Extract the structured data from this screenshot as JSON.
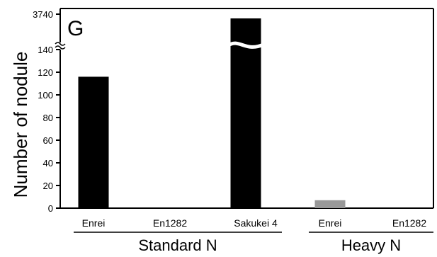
{
  "chart_data": {
    "type": "bar",
    "panel_label": "G",
    "ylabel": "Number of nodule",
    "ylim": [
      0,
      150
    ],
    "yticks": [
      "0",
      "20",
      "40",
      "60",
      "80",
      "100",
      "120",
      "140"
    ],
    "axis_break": true,
    "break_top_tick": "3740",
    "categories": [
      "Enrei",
      "En1282",
      "Sakukei 4",
      "Enrei",
      "En1282"
    ],
    "groups": [
      {
        "label": "Standard N",
        "categories": [
          0,
          1,
          2
        ]
      },
      {
        "label": "Heavy N",
        "categories": [
          3,
          4
        ]
      }
    ],
    "values": [
      116,
      0,
      3740,
      7,
      0
    ],
    "bar_colors": [
      "#000000",
      "#000000",
      "#000000",
      "#999999",
      "#999999"
    ]
  }
}
